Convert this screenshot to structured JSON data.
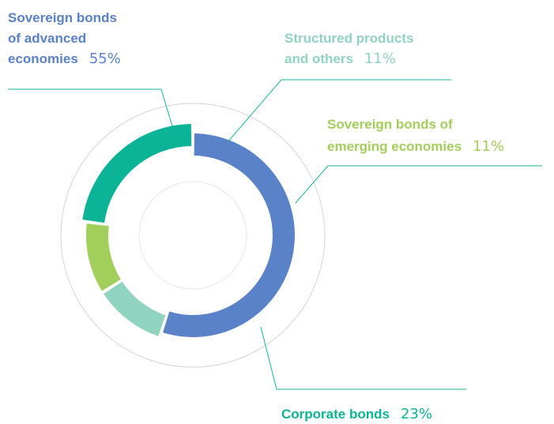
{
  "chart_data": {
    "type": "pie",
    "style": "donut",
    "segments": [
      {
        "name_lines": [
          "Sovereign bonds",
          "of advanced",
          "economies"
        ],
        "percent_label": "55%",
        "value": 55,
        "color": "#5982c8"
      },
      {
        "name_lines": [
          "Structured products",
          "and others"
        ],
        "percent_label": "11%",
        "value": 11,
        "color": "#90d3be"
      },
      {
        "name_lines": [
          "Sovereign bonds of",
          "emerging economies"
        ],
        "percent_label": "11%",
        "value": 11,
        "color": "#a2cf5b"
      },
      {
        "name_lines": [
          "Corporate bonds"
        ],
        "percent_label": "23%",
        "value": 23,
        "color": "#0bb397"
      }
    ],
    "leader_color": "#1ab49a",
    "outer_ring_color": "#d5d5d5",
    "inner_circle_color": "#e6e6e6"
  }
}
